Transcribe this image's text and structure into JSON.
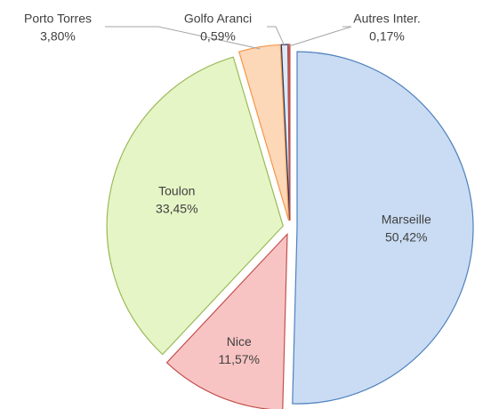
{
  "chart_data": {
    "type": "pie",
    "categories": [
      "Marseille",
      "Nice",
      "Toulon",
      "Porto Torres",
      "Golfo Aranci",
      "Autres Inter."
    ],
    "values": [
      50.42,
      11.57,
      33.45,
      3.8,
      0.59,
      0.17
    ],
    "value_labels": [
      "50,42%",
      "11,57%",
      "33,45%",
      "3,80%",
      "0,59%",
      "0,17%"
    ],
    "colors": [
      "#c9dcf3",
      "#f8c4c3",
      "#e6f5c6",
      "#fcd7b8",
      "#dfe8f4",
      "#c0504d"
    ],
    "strokes": [
      "#4f81bd",
      "#c0504d",
      "#9bbb59",
      "#f79646",
      "#1f3864",
      "#c0504d"
    ]
  }
}
